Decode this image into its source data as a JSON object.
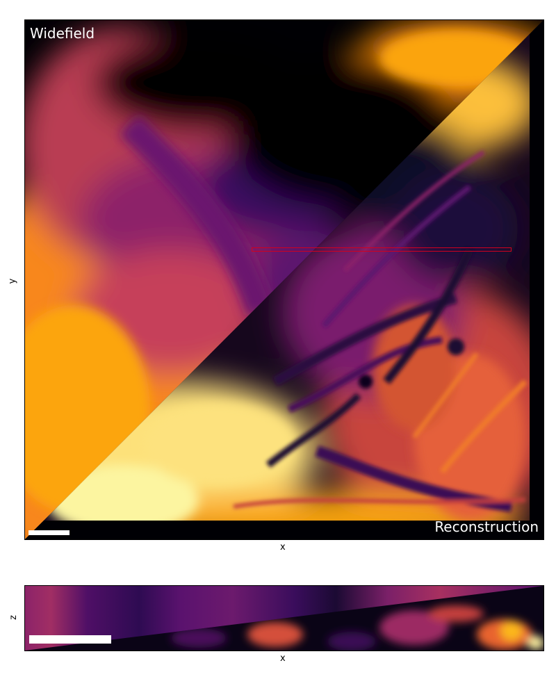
{
  "main_image": {
    "label_top_left": "Widefield",
    "label_bottom_right": "Reconstruction",
    "xlabel": "x",
    "ylabel": "y"
  },
  "side_view": {
    "xlabel": "x",
    "ylabel": "z"
  },
  "colormap": "inferno",
  "colors": {
    "roi_box": "#d2001e",
    "scale_bar": "#ffffff"
  }
}
